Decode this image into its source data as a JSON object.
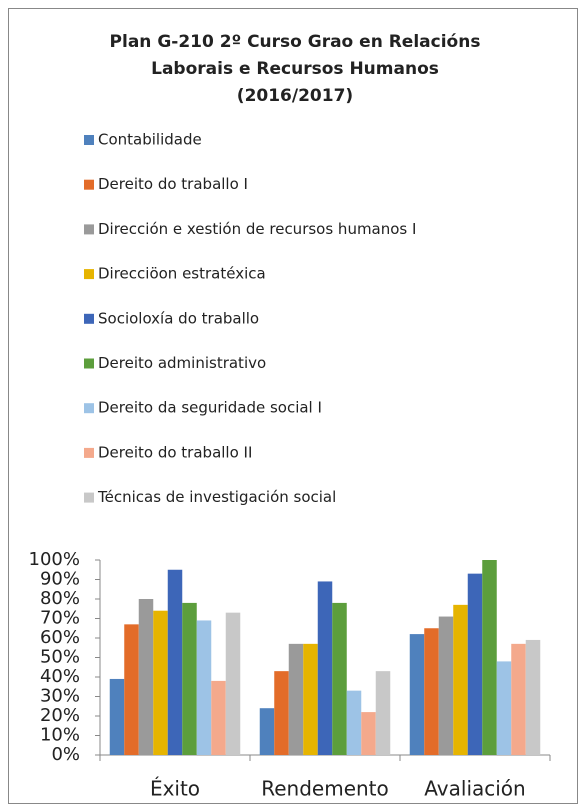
{
  "chart_data": {
    "type": "bar",
    "title": "Plan G-210 2º Curso Grao en Relacións Laborais e Recursos Humanos (2016/2017)",
    "title_lines": [
      "Plan G-210 2º Curso Grao en Relacións",
      "Laborais e Recursos Humanos",
      "(2016/2017)"
    ],
    "categories": [
      "Éxito",
      "Rendemento",
      "Avaliación"
    ],
    "series": [
      {
        "name": "Contabilidade",
        "color": "#4f81bd",
        "values": [
          39,
          24,
          62
        ]
      },
      {
        "name": "Dereito do traballo I",
        "color": "#e36c29",
        "values": [
          67,
          43,
          65
        ]
      },
      {
        "name": "Dirección e xestión de recursos humanos I",
        "color": "#9a9a9a",
        "values": [
          80,
          57,
          71
        ]
      },
      {
        "name": "Direcciöon estratéxica",
        "color": "#e6b400",
        "values": [
          74,
          57,
          77
        ]
      },
      {
        "name": "Socioloxía do traballo",
        "color": "#3d66b8",
        "values": [
          95,
          89,
          93
        ]
      },
      {
        "name": "Dereito administrativo",
        "color": "#5c9e3c",
        "values": [
          78,
          78,
          100
        ]
      },
      {
        "name": "Dereito da seguridade social I",
        "color": "#9dc3e6",
        "values": [
          69,
          33,
          48
        ]
      },
      {
        "name": "Dereito do traballo II",
        "color": "#f4a98c",
        "values": [
          38,
          22,
          57
        ]
      },
      {
        "name": "Técnicas de investigación social",
        "color": "#c8c8c8",
        "values": [
          73,
          43,
          59
        ]
      }
    ],
    "ylim": [
      0,
      100
    ],
    "yticks": [
      {
        "value": 0,
        "label": "0%"
      },
      {
        "value": 10,
        "label": "10%"
      },
      {
        "value": 20,
        "label": "20%"
      },
      {
        "value": 30,
        "label": "30%"
      },
      {
        "value": 40,
        "label": "40%"
      },
      {
        "value": 50,
        "label": "50%"
      },
      {
        "value": 60,
        "label": "60%"
      },
      {
        "value": 70,
        "label": "70%"
      },
      {
        "value": 80,
        "label": "80%"
      },
      {
        "value": 90,
        "label": "90%"
      },
      {
        "value": 100,
        "label": "100%"
      }
    ],
    "grid": false
  }
}
